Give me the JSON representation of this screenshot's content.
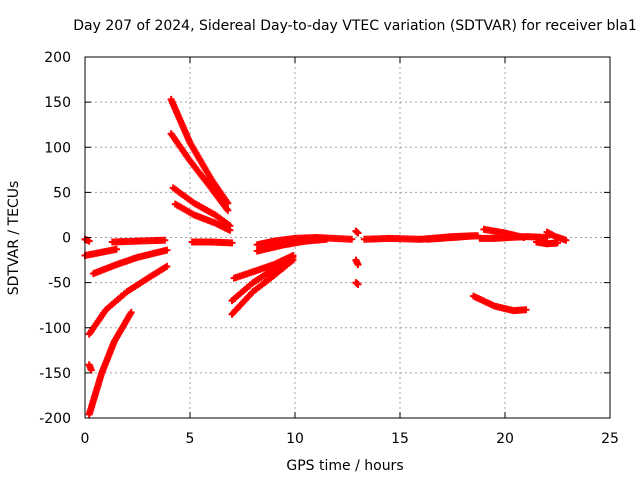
{
  "chart_data": {
    "type": "scatter",
    "title": "Day 207 of 2024, Sidereal Day-to-day VTEC variation (SDTVAR) for receiver bla1",
    "xlabel": "GPS time / hours",
    "ylabel": "SDTVAR / TECUs",
    "xlim": [
      0,
      25
    ],
    "ylim": [
      -200,
      200
    ],
    "xticks": [
      "0",
      "5",
      "10",
      "15",
      "20",
      "25"
    ],
    "yticks": [
      "-200",
      "-150",
      "-100",
      "-50",
      "0",
      "50",
      "100",
      "150",
      "200"
    ],
    "grid": true,
    "marker": "plus",
    "color": "#ff0000",
    "segments": [
      {
        "x": [
          0.0,
          0.2
        ],
        "y": [
          -2,
          -4
        ]
      },
      {
        "x": [
          0.0,
          1.5
        ],
        "y": [
          -20,
          -13
        ]
      },
      {
        "x": [
          0.4,
          1.5,
          2.5,
          3.9
        ],
        "y": [
          -40,
          -30,
          -22,
          -14
        ]
      },
      {
        "x": [
          0.2,
          1.0,
          2.0,
          3.0,
          3.9
        ],
        "y": [
          -107,
          -80,
          -60,
          -45,
          -32
        ]
      },
      {
        "x": [
          0.2,
          0.3
        ],
        "y": [
          -141,
          -147
        ]
      },
      {
        "x": [
          0.2,
          0.8,
          1.4,
          2.2
        ],
        "y": [
          -196,
          -150,
          -115,
          -83
        ]
      },
      {
        "x": [
          1.3,
          2.5,
          3.8
        ],
        "y": [
          -5,
          -4,
          -3
        ]
      },
      {
        "x": [
          4.1,
          5.0,
          6.0,
          6.8
        ],
        "y": [
          153,
          105,
          65,
          38
        ]
      },
      {
        "x": [
          4.1,
          5.0,
          6.0,
          6.8
        ],
        "y": [
          115,
          85,
          55,
          30
        ]
      },
      {
        "x": [
          4.2,
          5.2,
          6.2,
          6.9
        ],
        "y": [
          55,
          38,
          25,
          13
        ]
      },
      {
        "x": [
          4.3,
          5.2,
          6.2,
          6.9
        ],
        "y": [
          37,
          25,
          16,
          8
        ]
      },
      {
        "x": [
          5.1,
          6.0,
          7.0
        ],
        "y": [
          -5,
          -5,
          -6
        ]
      },
      {
        "x": [
          7.1,
          8.0,
          9.0,
          9.9
        ],
        "y": [
          -45,
          -38,
          -30,
          -20
        ]
      },
      {
        "x": [
          7.0,
          8.0,
          9.0,
          9.9
        ],
        "y": [
          -70,
          -50,
          -35,
          -22
        ]
      },
      {
        "x": [
          7.0,
          8.0,
          9.0,
          9.9
        ],
        "y": [
          -85,
          -60,
          -42,
          -25
        ]
      },
      {
        "x": [
          8.2,
          9.0,
          10.0,
          11.0,
          12.7
        ],
        "y": [
          -8,
          -4,
          -1,
          0,
          -2
        ]
      },
      {
        "x": [
          8.2,
          9.5,
          10.5,
          11.5
        ],
        "y": [
          -15,
          -8,
          -4,
          -2
        ]
      },
      {
        "x": [
          12.9,
          13.0
        ],
        "y": [
          7,
          5
        ]
      },
      {
        "x": [
          12.9,
          13.0
        ],
        "y": [
          -25,
          -30
        ]
      },
      {
        "x": [
          12.9,
          13.0
        ],
        "y": [
          -50,
          -52
        ]
      },
      {
        "x": [
          13.3,
          14.5,
          16.0,
          17.5,
          18.6
        ],
        "y": [
          -2,
          -1,
          -2,
          1,
          2
        ]
      },
      {
        "x": [
          16.3,
          17.5,
          18.7
        ],
        "y": [
          -2,
          0,
          2
        ]
      },
      {
        "x": [
          18.8,
          19.5,
          20.2,
          21.0,
          22.0
        ],
        "y": [
          -1,
          -1,
          0,
          1,
          0
        ]
      },
      {
        "x": [
          19.0,
          20.0,
          20.9
        ],
        "y": [
          9,
          5,
          0
        ]
      },
      {
        "x": [
          22.0,
          22.4,
          22.9
        ],
        "y": [
          6,
          1,
          -3
        ]
      },
      {
        "x": [
          21.5,
          22.0,
          22.5
        ],
        "y": [
          -5,
          -7,
          -6
        ]
      },
      {
        "x": [
          18.5,
          19.5,
          20.4,
          21.0
        ],
        "y": [
          -65,
          -76,
          -81,
          -80
        ]
      }
    ]
  }
}
